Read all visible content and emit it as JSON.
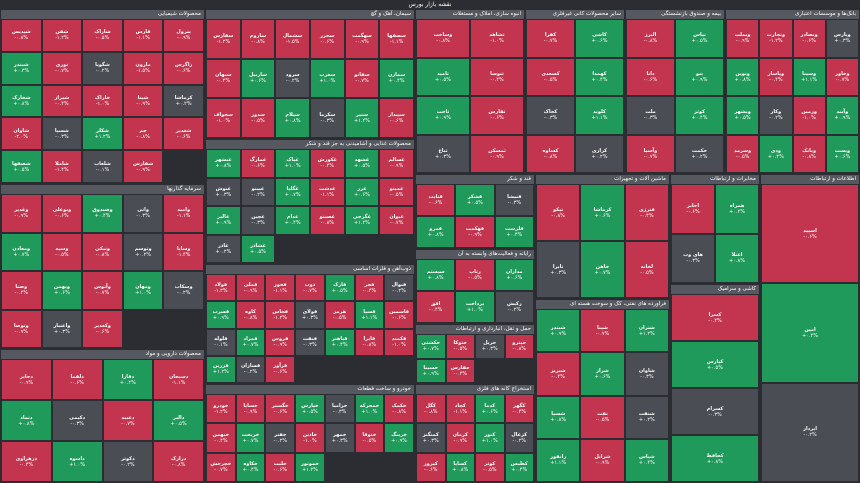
{
  "page": {
    "title": "نقشه بازار بورس"
  },
  "colors": {
    "up": "#1f9a5a",
    "down": "#c3344e",
    "flat": "#4a4d54",
    "header": "#55585f"
  },
  "sectors": [
    {
      "name": "محصولات شیمیایی",
      "tiles": [
        [
          "شپدیس",
          "-۰.۸%",
          "d"
        ],
        [
          "شفن",
          "-۱.۲%",
          "d"
        ],
        [
          "شاراک",
          "-۰.۵%",
          "d"
        ],
        [
          "فارس",
          "-۱.۱%",
          "d"
        ],
        [
          "پترول",
          "-۰.۹%",
          "d"
        ],
        [
          "شبندر",
          "+۰.۳%",
          "u"
        ],
        [
          "نوری",
          "-۰.۷%",
          "d"
        ],
        [
          "شگویا",
          "-۰.۲%",
          "f"
        ],
        [
          "مارون",
          "-۱.۵%",
          "d"
        ],
        [
          "زاگرس",
          "-۰.۶%",
          "d"
        ],
        [
          "شخارک",
          "+۰.۸%",
          "u"
        ],
        [
          "شیراز",
          "-۰.۴%",
          "d"
        ],
        [
          "خاراک",
          "-۱.۰%",
          "d"
        ],
        [
          "شپنا",
          "-۰.۹%",
          "d"
        ],
        [
          "کرماشا",
          "+۰.۲%",
          "f"
        ],
        [
          "شاوان",
          "-۲.۰%",
          "d"
        ],
        [
          "شسپا",
          "-۰.۳%",
          "f"
        ],
        [
          "شکلر",
          "+۱.۲%",
          "u"
        ],
        [
          "جم",
          "-۰.۸%",
          "d"
        ],
        [
          "شغدیر",
          "-۰.۶%",
          "d"
        ],
        [
          "شصفها",
          "+۰.۵%",
          "u"
        ],
        [
          "شاملا",
          "-۱.۴%",
          "d"
        ],
        [
          "شلعاب",
          "-۰.۱%",
          "f"
        ],
        [
          "شفارس",
          "-۰.۹%",
          "d"
        ]
      ]
    },
    {
      "name": "سیمان، آهک و گچ",
      "tiles": [
        [
          "سفارس",
          "-۱.۲%",
          "d"
        ],
        [
          "ساروم",
          "-۰.۸%",
          "d"
        ],
        [
          "سشمال",
          "-۱.۵%",
          "d"
        ],
        [
          "سخزر",
          "-۰.۶%",
          "d"
        ],
        [
          "سهگمت",
          "-۰.۹%",
          "d"
        ],
        [
          "سصفها",
          "-۱.۱%",
          "d"
        ],
        [
          "سبهان",
          "-۰.۴%",
          "d"
        ],
        [
          "ساربیل",
          "+۰.۶%",
          "u"
        ],
        [
          "سرود",
          "-۰.۲%",
          "f"
        ],
        [
          "سغرب",
          "+۱.۰%",
          "u"
        ],
        [
          "سفانو",
          "-۰.۷%",
          "d"
        ],
        [
          "سمازن",
          "+۰.۴%",
          "u"
        ],
        [
          "سخواف",
          "-۱.۰%",
          "d"
        ],
        [
          "سدور",
          "-۰.۵%",
          "d"
        ],
        [
          "سیلام",
          "+۰.۸%",
          "u"
        ],
        [
          "سکرما",
          "-۰.۳%",
          "f"
        ],
        [
          "سنیر",
          "+۱.۴%",
          "u"
        ],
        [
          "سپیدار",
          "-۰.۶%",
          "d"
        ]
      ]
    },
    {
      "name": "ذوب‌آهن و فلزات اساسی",
      "tiles": [
        [
          "فولاد",
          "-۱.۳%",
          "d"
        ],
        [
          "فملی",
          "-۰.۹%",
          "d"
        ],
        [
          "فخوز",
          "-۱.۱%",
          "d"
        ],
        [
          "ذوب",
          "-۰.۷%",
          "d"
        ],
        [
          "فارک",
          "+۰.۵%",
          "u"
        ],
        [
          "فجر",
          "-۰.۴%",
          "d"
        ],
        [
          "فنوال",
          "-۰.۲%",
          "f"
        ],
        [
          "فسرب",
          "+۰.۹%",
          "u"
        ],
        [
          "کاوه",
          "-۰.۸%",
          "d"
        ],
        [
          "فخاس",
          "-۱.۲%",
          "d"
        ],
        [
          "فولای",
          "+۰.۳%",
          "f"
        ],
        [
          "هرمز",
          "-۰.۵%",
          "d"
        ],
        [
          "فسپا",
          "+۱.۱%",
          "u"
        ],
        [
          "فاسمین",
          "-۰.۶%",
          "d"
        ],
        [
          "فلوله",
          "-۰.۱%",
          "f"
        ],
        [
          "فمراد",
          "+۰.۷%",
          "u"
        ],
        [
          "فروس",
          "-۰.۹%",
          "d"
        ],
        [
          "فنفت",
          "-۰.۳%",
          "f"
        ],
        [
          "فباهنر",
          "+۰.۴%",
          "u"
        ],
        [
          "فایرا",
          "-۰.۸%",
          "d"
        ],
        [
          "فکمند",
          "-۱.۰%",
          "d"
        ],
        [
          "فزرین",
          "+۱.۲%",
          "u"
        ],
        [
          "فسازان",
          "-۰.۲%",
          "f"
        ],
        [
          "فرآور",
          "-۰.۶%",
          "d"
        ]
      ]
    },
    {
      "name": "بانک‌ها و موسسات اعتباری",
      "tiles": [
        [
          "وبملت",
          "-۰.۹%",
          "d"
        ],
        [
          "وتجارت",
          "-۱.۲%",
          "d"
        ],
        [
          "وبصادر",
          "-۰.۶%",
          "d"
        ],
        [
          "وپارس",
          "+۰.۳%",
          "f"
        ],
        [
          "ونوین",
          "+۰.۸%",
          "u"
        ],
        [
          "وپاسار",
          "-۰.۴%",
          "d"
        ],
        [
          "وسینا",
          "+۱.۱%",
          "u"
        ],
        [
          "وخاور",
          "-۰.۷%",
          "d"
        ],
        [
          "وبشهر",
          "+۰.۵%",
          "u"
        ],
        [
          "وکار",
          "-۰.۲%",
          "f"
        ],
        [
          "وزمین",
          "-۱.۰%",
          "d"
        ],
        [
          "وآیند",
          "+۰.۹%",
          "u"
        ],
        [
          "وسرمد",
          "-۰.۵%",
          "d"
        ],
        [
          "ودی",
          "+۰.۴%",
          "u"
        ],
        [
          "وبانک",
          "-۰.۸%",
          "d"
        ],
        [
          "وپست",
          "+۰.۶%",
          "u"
        ]
      ]
    },
    {
      "name": "سرمایه گذاریها",
      "tiles": [
        [
          "وغدیر",
          "-۰.۹%",
          "d"
        ],
        [
          "وبوعلی",
          "-۰.۶%",
          "d"
        ],
        [
          "وصندوق",
          "+۰.۴%",
          "u"
        ],
        [
          "واتی",
          "-۰.۳%",
          "f"
        ],
        [
          "وامید",
          "-۱.۱%",
          "d"
        ],
        [
          "ومعادن",
          "+۰.۷%",
          "u"
        ],
        [
          "وسپه",
          "-۰.۵%",
          "d"
        ],
        [
          "ونیکی",
          "-۰.۸%",
          "d"
        ],
        [
          "وتوسم",
          "+۰.۲%",
          "f"
        ],
        [
          "وساپا",
          "-۱.۴%",
          "d"
        ],
        [
          "وصنا",
          "-۰.۴%",
          "d"
        ],
        [
          "وبهمن",
          "+۰.۶%",
          "u"
        ],
        [
          "وآتوس",
          "-۰.۷%",
          "d"
        ],
        [
          "ومهان",
          "+۱.۰%",
          "u"
        ],
        [
          "وسکاب",
          "-۰.۲%",
          "f"
        ],
        [
          "وتوصا",
          "-۰.۹%",
          "d"
        ],
        [
          "واعتبار",
          "+۰.۳%",
          "f"
        ],
        [
          "وکغدیر",
          "-۰.۶%",
          "d"
        ]
      ]
    },
    {
      "name": "خودرو و ساخت قطعات",
      "tiles": [
        [
          "خودرو",
          "-۱.۲%",
          "d"
        ],
        [
          "خساپا",
          "-۰.۹%",
          "d"
        ],
        [
          "خگستر",
          "-۰.۶%",
          "d"
        ],
        [
          "خپارس",
          "+۰.۵%",
          "u"
        ],
        [
          "خزامیا",
          "-۰.۳%",
          "f"
        ],
        [
          "خمحرکه",
          "+۱.۰%",
          "u"
        ],
        [
          "خکمک",
          "-۰.۸%",
          "d"
        ],
        [
          "خبهمن",
          "-۰.۴%",
          "d"
        ],
        [
          "خریخت",
          "+۰.۷%",
          "u"
        ],
        [
          "خفنر",
          "-۰.۲%",
          "f"
        ],
        [
          "خاذین",
          "-۱.۰%",
          "d"
        ],
        [
          "خمهر",
          "+۰.۳%",
          "f"
        ],
        [
          "ختوقا",
          "-۰.۵%",
          "d"
        ],
        [
          "خرینگ",
          "+۰.۹%",
          "u"
        ],
        [
          "خچرخش",
          "-۰.۷%",
          "d"
        ],
        [
          "خکاوه",
          "+۰.۴%",
          "u"
        ],
        [
          "خلنت",
          "-۰.۶%",
          "d"
        ],
        [
          "خموتور",
          "+۱.۲%",
          "u"
        ]
      ]
    },
    {
      "name": "استخراج کانه های فلزی",
      "tiles": [
        [
          "کگل",
          "-۰.۸%",
          "d"
        ],
        [
          "کچاد",
          "-۱.۱%",
          "d"
        ],
        [
          "کدما",
          "+۰.۶%",
          "u"
        ],
        [
          "کگهر",
          "-۰.۴%",
          "d"
        ],
        [
          "کمنگنز",
          "+۰.۳%",
          "f"
        ],
        [
          "کرمان",
          "-۰.۹%",
          "d"
        ],
        [
          "کنور",
          "+۱.۰%",
          "u"
        ],
        [
          "کزغال",
          "-۰.۲%",
          "f"
        ],
        [
          "کپرور",
          "-۰.۶%",
          "d"
        ],
        [
          "کساپا",
          "+۰.۸%",
          "u"
        ],
        [
          "کوثر",
          "-۰.۵%",
          "d"
        ],
        [
          "کطبس",
          "+۰.۴%",
          "u"
        ]
      ]
    },
    {
      "name": "فراورده های نفتی، کک و سوخت هسته ای",
      "tiles": [
        [
          "شبندر",
          "+۰.۹%",
          "u"
        ],
        [
          "شپنا",
          "-۰.۷%",
          "d"
        ],
        [
          "شتران",
          "+۱.۲%",
          "u"
        ],
        [
          "شبریز",
          "-۰.۴%",
          "d"
        ],
        [
          "شراز",
          "+۰.۶%",
          "u"
        ],
        [
          "شاوان",
          "-۰.۳%",
          "f"
        ],
        [
          "شسپا",
          "+۰.۸%",
          "u"
        ],
        [
          "نفت",
          "-۰.۵%",
          "d"
        ],
        [
          "شنفت",
          "+۰.۲%",
          "f"
        ],
        [
          "رانفور",
          "+۱.۱%",
          "u"
        ],
        [
          "شرانل",
          "-۰.۹%",
          "d"
        ],
        [
          "شپاس",
          "+۰.۴%",
          "u"
        ]
      ]
    },
    {
      "name": "محصولات غذایی و آشامیدنی به جز قند و شکر",
      "tiles": [
        [
          "غبشهر",
          "+۰.۸%",
          "u"
        ],
        [
          "غمارگ",
          "-۰.۶%",
          "d"
        ],
        [
          "غپاک",
          "+۱.۰%",
          "u"
        ],
        [
          "غکورش",
          "-۰.۴%",
          "d"
        ],
        [
          "غشهد",
          "+۰.۵%",
          "u"
        ],
        [
          "غسالم",
          "-۰.۹%",
          "d"
        ],
        [
          "غنوش",
          "+۰.۳%",
          "f"
        ],
        [
          "غپینو",
          "-۰.۲%",
          "f"
        ],
        [
          "غگلپا",
          "+۰.۷%",
          "u"
        ],
        [
          "غدشت",
          "-۱.۱%",
          "d"
        ],
        [
          "غزر",
          "+۰.۶%",
          "u"
        ],
        [
          "غمینو",
          "-۰.۵%",
          "d"
        ],
        [
          "غالبر",
          "+۰.۹%",
          "u"
        ],
        [
          "غچین",
          "-۰.۳%",
          "f"
        ],
        [
          "غدام",
          "+۰.۴%",
          "u"
        ],
        [
          "غصینو",
          "-۰.۸%",
          "d"
        ],
        [
          "غگرجی",
          "+۱.۲%",
          "u"
        ],
        [
          "غیوان",
          "-۰.۷%",
          "d"
        ],
        [
          "غاذر",
          "+۰.۲%",
          "f"
        ],
        [
          "غشاذر",
          "+۰.۵%",
          "u"
        ]
      ]
    },
    {
      "name": "محصولات دارویی و مواد",
      "tiles": [
        [
          "دجابر",
          "-۰.۹%",
          "d"
        ],
        [
          "دلقما",
          "-۰.۶%",
          "d"
        ],
        [
          "دفارا",
          "+۰.۴%",
          "u"
        ],
        [
          "دسبحان",
          "-۱.۱%",
          "d"
        ],
        [
          "دتماد",
          "+۰.۸%",
          "u"
        ],
        [
          "دکیمی",
          "-۰.۳%",
          "f"
        ],
        [
          "دعبید",
          "-۰.۷%",
          "d"
        ],
        [
          "دالبر",
          "+۰.۵%",
          "u"
        ],
        [
          "دزهراوی",
          "-۰.۴%",
          "d"
        ],
        [
          "داسوه",
          "+۱.۰%",
          "u"
        ],
        [
          "دکوثر",
          "-۰.۲%",
          "f"
        ],
        [
          "درازک",
          "-۰.۸%",
          "d"
        ]
      ]
    },
    {
      "name": "انبوه سازی، املاک و مستغلات",
      "tiles": [
        [
          "وساخت",
          "-۰.۸%",
          "d"
        ],
        [
          "ثشاهد",
          "-۱.۰%",
          "d"
        ],
        [
          "ثامید",
          "+۰.۵%",
          "u"
        ],
        [
          "ثنوسا",
          "-۰.۴%",
          "d"
        ],
        [
          "ثاخت",
          "+۰.۹%",
          "u"
        ],
        [
          "ثفارس",
          "-۰.۶%",
          "d"
        ],
        [
          "ثباغ",
          "+۰.۳%",
          "f"
        ],
        [
          "ثمسکن",
          "-۰.۹%",
          "d"
        ]
      ]
    },
    {
      "name": "سایر محصولات کانی غیرفلزی",
      "tiles": [
        [
          "کفرا",
          "-۰.۷%",
          "d"
        ],
        [
          "کاشی",
          "+۰.۶%",
          "u"
        ],
        [
          "کسعدی",
          "-۰.۵%",
          "d"
        ],
        [
          "کهمدا",
          "+۰.۴%",
          "u"
        ],
        [
          "کخاک",
          "-۰.۳%",
          "f"
        ],
        [
          "کلوند",
          "+۱.۱%",
          "u"
        ],
        [
          "کساوه",
          "-۰.۸%",
          "d"
        ],
        [
          "کرازی",
          "+۰.۲%",
          "f"
        ]
      ]
    },
    {
      "name": "بیمه و صندوق بازنشستگی",
      "tiles": [
        [
          "البرز",
          "-۰.۸%",
          "d"
        ],
        [
          "بپاس",
          "+۰.۵%",
          "u"
        ],
        [
          "دانا",
          "-۰.۶%",
          "d"
        ],
        [
          "بنو",
          "+۰.۹%",
          "u"
        ],
        [
          "ملت",
          "-۰.۳%",
          "f"
        ],
        [
          "کوثر",
          "+۰.۴%",
          "u"
        ],
        [
          "وآسیا",
          "-۰.۷%",
          "d"
        ],
        [
          "حکمت",
          "+۰.۲%",
          "f"
        ]
      ]
    },
    {
      "name": "رایانه و فعالیت‌های وابسته به آن",
      "tiles": [
        [
          "سیستم",
          "+۰.۸%",
          "u"
        ],
        [
          "رتاپ",
          "-۰.۵%",
          "d"
        ],
        [
          "مداران",
          "+۰.۶%",
          "u"
        ],
        [
          "افق",
          "-۰.۴%",
          "d"
        ],
        [
          "پرداخت",
          "+۱.۰%",
          "u"
        ],
        [
          "رکیش",
          "-۰.۲%",
          "f"
        ]
      ]
    },
    {
      "name": "مخابرات و ارتباطات",
      "tiles": [
        [
          "اخابر",
          "-۰.۶%",
          "d"
        ],
        [
          "همراه",
          "+۰.۴%",
          "u"
        ],
        [
          "های وب",
          "-۰.۳%",
          "f"
        ],
        [
          "اعتلا",
          "+۰.۸%",
          "u"
        ]
      ]
    },
    {
      "name": "حمل و نقل، انبارداری و ارتباطات",
      "tiles": [
        [
          "حکشتی",
          "+۰.۷%",
          "u"
        ],
        [
          "حتوکا",
          "-۰.۵%",
          "d"
        ],
        [
          "حریل",
          "+۰.۳%",
          "f"
        ],
        [
          "حپترو",
          "-۰.۸%",
          "d"
        ],
        [
          "حسینا",
          "+۰.۹%",
          "u"
        ],
        [
          "حفارس",
          "-۰.۴%",
          "d"
        ]
      ]
    },
    {
      "name": "قند و شکر",
      "tiles": [
        [
          "قثابت",
          "-۰.۶%",
          "d"
        ],
        [
          "قشکر",
          "+۰.۵%",
          "u"
        ],
        [
          "قنیشا",
          "-۰.۳%",
          "f"
        ],
        [
          "قمرو",
          "+۰.۸%",
          "u"
        ],
        [
          "قهکمت",
          "-۰.۹%",
          "d"
        ],
        [
          "قلرست",
          "+۰.۴%",
          "u"
        ]
      ]
    },
    {
      "name": "ماشین آلات و تجهیزات",
      "tiles": [
        [
          "تپکو",
          "-۰.۸%",
          "d"
        ],
        [
          "کرماشا",
          "+۰.۶%",
          "u"
        ],
        [
          "فنرژی",
          "-۰.۴%",
          "d"
        ],
        [
          "تایرا",
          "+۰.۳%",
          "f"
        ],
        [
          "خاهن",
          "+۰.۷%",
          "u"
        ],
        [
          "لخانه",
          "-۰.۵%",
          "d"
        ]
      ]
    },
    {
      "name": "کاشی و سرامیک",
      "tiles": [
        [
          "کسرا",
          "-۰.۴%",
          "d"
        ],
        [
          "کپارس",
          "+۰.۵%",
          "u"
        ],
        [
          "کسرام",
          "-۰.۳%",
          "f"
        ],
        [
          "کحافظ",
          "+۰.۸%",
          "u"
        ]
      ]
    },
    {
      "name": "اطلاعات و ارتباطات",
      "tiles": [
        [
          "اسپید",
          "-۰.۶%",
          "d"
        ],
        [
          "امین",
          "+۰.۴%",
          "u"
        ],
        [
          "اپرداز",
          "-۰.۲%",
          "f"
        ]
      ]
    }
  ]
}
